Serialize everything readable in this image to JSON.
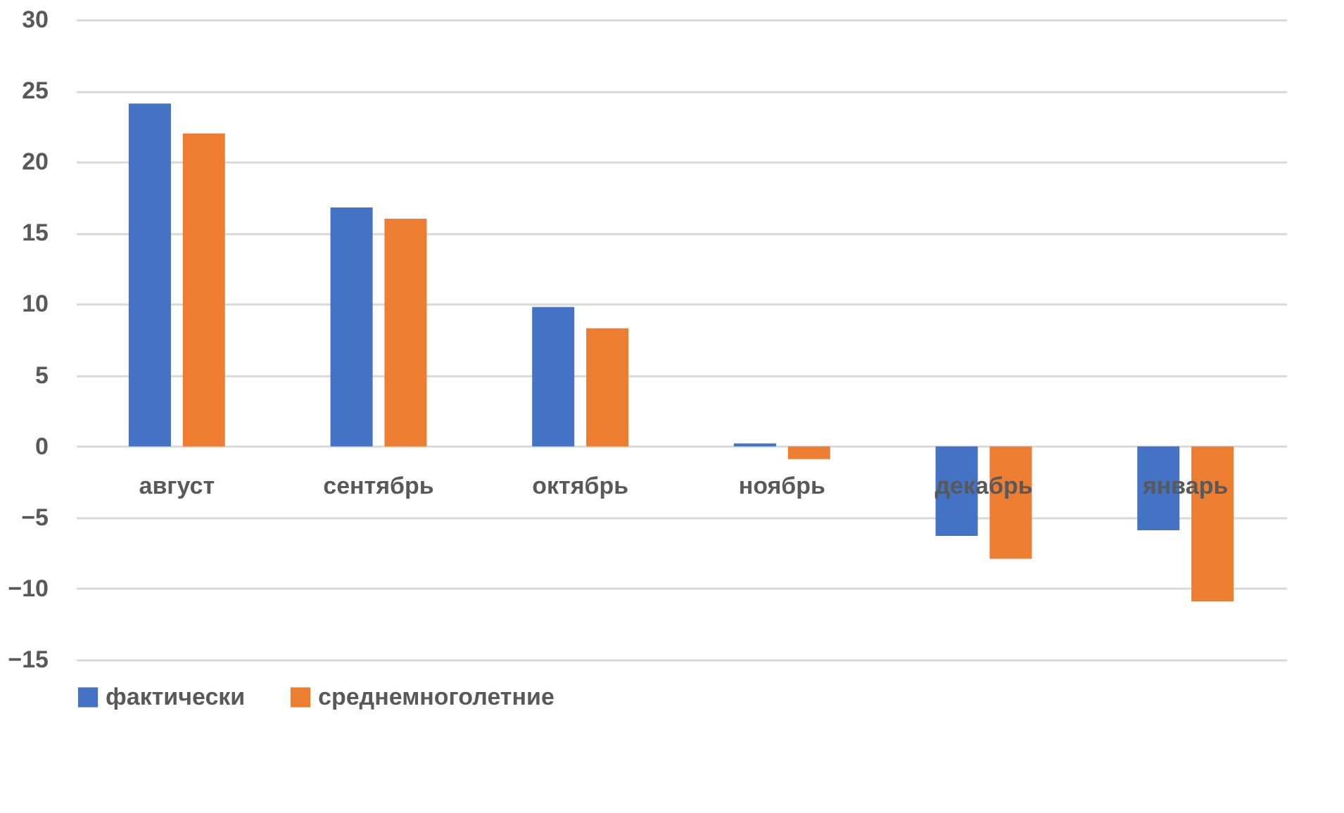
{
  "chart_data": {
    "type": "bar",
    "categories": [
      "август",
      "сентябрь",
      "октябрь",
      "ноябрь",
      "декабрь",
      "январь"
    ],
    "series": [
      {
        "name": "фактически",
        "color": "#4472c4",
        "values": [
          24.1,
          16.8,
          9.8,
          0.2,
          -6.3,
          -5.9
        ]
      },
      {
        "name": "среднемноголетние",
        "color": "#ed7d31",
        "values": [
          22.0,
          16.0,
          8.3,
          -0.9,
          -7.9,
          -10.9
        ]
      }
    ],
    "ylim": [
      -15,
      30
    ],
    "yticks": [
      -15,
      -10,
      -5,
      0,
      5,
      10,
      15,
      20,
      25,
      30
    ],
    "grid": "y",
    "legend": "bottom"
  }
}
